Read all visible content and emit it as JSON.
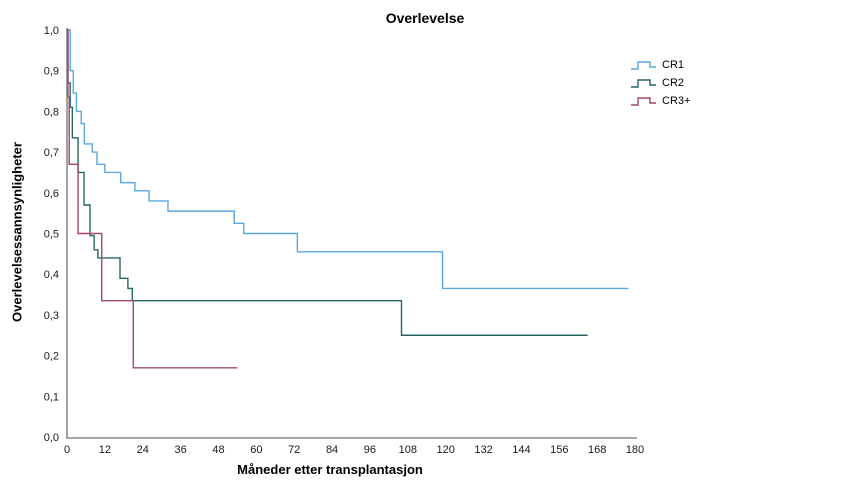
{
  "chart_data": {
    "type": "line",
    "subtype": "kaplan-meier-step",
    "title": "Overlevelse",
    "xlabel": "Måneder etter transplantasjon",
    "ylabel": "Overlevelsessannsynligheter",
    "xlim": [
      0,
      180
    ],
    "ylim": [
      0.0,
      1.0
    ],
    "xticks": [
      0,
      12,
      24,
      36,
      48,
      60,
      72,
      84,
      96,
      108,
      120,
      132,
      144,
      156,
      168,
      180
    ],
    "xtick_labels": [
      "0",
      "12",
      "24",
      "36",
      "48",
      "60",
      "72",
      "84",
      "96",
      "108",
      "120",
      "132",
      "144",
      "156",
      "168",
      "180"
    ],
    "yticks": [
      0.0,
      0.1,
      0.2,
      0.3,
      0.4,
      0.5,
      0.6,
      0.7,
      0.8,
      0.9,
      1.0
    ],
    "ytick_labels": [
      "0,0",
      "0,1",
      "0,2",
      "0,3",
      "0,4",
      "0,5",
      "0,6",
      "0,7",
      "0,8",
      "0,9",
      "1,0"
    ],
    "grid": false,
    "legend_position": "top-right",
    "axis_color": "#8a8a8a",
    "tick_text_color": "#1a1a1a",
    "series": [
      {
        "name": "CR1",
        "color": "#5aa7dc",
        "end_t": 178,
        "points": [
          [
            0,
            1.0
          ],
          [
            1,
            0.9
          ],
          [
            2,
            0.845
          ],
          [
            3,
            0.8
          ],
          [
            4.5,
            0.77
          ],
          [
            5.5,
            0.72
          ],
          [
            8,
            0.7
          ],
          [
            9.5,
            0.67
          ],
          [
            12,
            0.65
          ],
          [
            17,
            0.625
          ],
          [
            21.5,
            0.605
          ],
          [
            26,
            0.58
          ],
          [
            32,
            0.555
          ],
          [
            53,
            0.525
          ],
          [
            56,
            0.5
          ],
          [
            73,
            0.455
          ],
          [
            119,
            0.365
          ]
        ]
      },
      {
        "name": "CR2",
        "color": "#266661",
        "end_t": 165,
        "points": [
          [
            0,
            1.0
          ],
          [
            0.3,
            0.87
          ],
          [
            1,
            0.81
          ],
          [
            1.7,
            0.735
          ],
          [
            3.5,
            0.65
          ],
          [
            5.4,
            0.57
          ],
          [
            7.3,
            0.495
          ],
          [
            8.6,
            0.46
          ],
          [
            9.8,
            0.44
          ],
          [
            16.8,
            0.39
          ],
          [
            19.3,
            0.365
          ],
          [
            20.7,
            0.335
          ],
          [
            106,
            0.25
          ]
        ]
      },
      {
        "name": "CR3+",
        "color": "#a3476b",
        "end_t": 54,
        "points": [
          [
            0,
            1.0
          ],
          [
            0.3,
            0.835
          ],
          [
            0.7,
            0.67
          ],
          [
            3.5,
            0.5
          ],
          [
            11,
            0.335
          ],
          [
            21,
            0.17
          ]
        ]
      }
    ]
  }
}
